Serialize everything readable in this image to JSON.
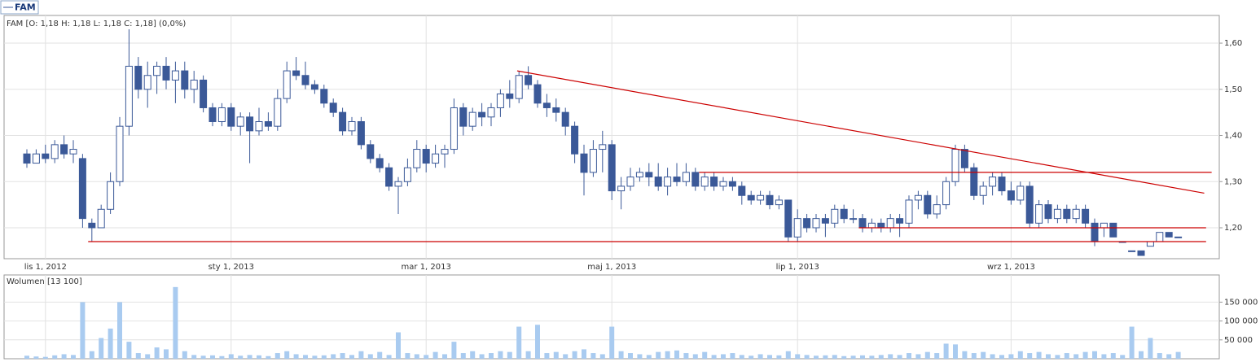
{
  "header": {
    "legend": "FAM",
    "info": "FAM [O: 1,18  H: 1,18  L: 1,18  C: 1,18] (0,0%)"
  },
  "chart_data": [
    {
      "type": "candlestick",
      "up_color": "#ffffff",
      "down_color": "#3b5998",
      "edge_color": "#3b5998",
      "grid": true,
      "categories": [
        null,
        null,
        "lis 1, 2012",
        null,
        null,
        null,
        null,
        null,
        null,
        null,
        null,
        null,
        null,
        null,
        null,
        null,
        null,
        null,
        null,
        null,
        null,
        null,
        "sty 1, 2013",
        null,
        null,
        null,
        null,
        null,
        null,
        null,
        null,
        null,
        null,
        null,
        null,
        null,
        null,
        null,
        null,
        null,
        null,
        null,
        null,
        "mar 1, 2013",
        null,
        null,
        null,
        null,
        null,
        null,
        null,
        null,
        null,
        null,
        null,
        null,
        null,
        null,
        null,
        null,
        null,
        null,
        null,
        "maj 1, 2013",
        null,
        null,
        null,
        null,
        null,
        null,
        null,
        null,
        null,
        null,
        null,
        null,
        null,
        null,
        null,
        null,
        null,
        null,
        null,
        "lip 1, 2013",
        null,
        null,
        null,
        null,
        null,
        null,
        null,
        null,
        null,
        null,
        null,
        null,
        null,
        null,
        null,
        null,
        null,
        null,
        null,
        null,
        null,
        null,
        "wrz 1, 2013",
        null,
        null,
        null,
        null,
        null,
        null,
        null,
        null,
        null,
        null,
        null,
        null,
        null,
        null,
        null,
        null,
        null,
        null
      ],
      "open": [
        1.36,
        1.34,
        1.36,
        1.35,
        1.38,
        1.36,
        1.35,
        1.21,
        1.2,
        1.24,
        1.3,
        1.42,
        1.55,
        1.5,
        1.53,
        1.55,
        1.52,
        1.54,
        1.5,
        1.52,
        1.46,
        1.43,
        1.46,
        1.42,
        1.44,
        1.41,
        1.43,
        1.42,
        1.48,
        1.54,
        1.53,
        1.51,
        1.5,
        1.47,
        1.45,
        1.41,
        1.43,
        1.38,
        1.35,
        1.33,
        1.29,
        1.3,
        1.33,
        1.37,
        1.34,
        1.36,
        1.37,
        1.46,
        1.42,
        1.45,
        1.44,
        1.46,
        1.49,
        1.48,
        1.53,
        1.51,
        1.47,
        1.46,
        1.45,
        1.42,
        1.36,
        1.32,
        1.37,
        1.38,
        1.28,
        1.29,
        1.31,
        1.32,
        1.31,
        1.29,
        1.31,
        1.3,
        1.32,
        1.29,
        1.31,
        1.29,
        1.3,
        1.29,
        1.27,
        1.26,
        1.27,
        1.25,
        1.26,
        1.18,
        1.22,
        1.2,
        1.22,
        1.21,
        1.24,
        1.22,
        1.22,
        1.2,
        1.21,
        1.2,
        1.22,
        1.21,
        1.26,
        1.27,
        1.23,
        1.25,
        1.3,
        1.37,
        1.33,
        1.27,
        1.29,
        1.31,
        1.28,
        1.26,
        1.29,
        1.21,
        1.25,
        1.22,
        1.24,
        1.22,
        1.24,
        1.21,
        1.2,
        1.21,
        1.17,
        1.15,
        1.15,
        1.16,
        1.17,
        1.19,
        1.18
      ],
      "high": [
        1.37,
        1.37,
        1.38,
        1.39,
        1.4,
        1.39,
        1.36,
        1.22,
        1.25,
        1.32,
        1.44,
        1.63,
        1.57,
        1.56,
        1.56,
        1.57,
        1.56,
        1.56,
        1.54,
        1.53,
        1.47,
        1.47,
        1.47,
        1.45,
        1.45,
        1.46,
        1.45,
        1.5,
        1.56,
        1.57,
        1.56,
        1.52,
        1.51,
        1.48,
        1.46,
        1.44,
        1.44,
        1.39,
        1.36,
        1.34,
        1.31,
        1.35,
        1.39,
        1.38,
        1.38,
        1.38,
        1.48,
        1.47,
        1.46,
        1.47,
        1.47,
        1.5,
        1.52,
        1.54,
        1.55,
        1.52,
        1.49,
        1.48,
        1.46,
        1.43,
        1.38,
        1.39,
        1.41,
        1.39,
        1.31,
        1.33,
        1.33,
        1.34,
        1.34,
        1.33,
        1.34,
        1.34,
        1.33,
        1.32,
        1.32,
        1.31,
        1.31,
        1.3,
        1.28,
        1.28,
        1.28,
        1.27,
        1.26,
        1.24,
        1.23,
        1.23,
        1.23,
        1.25,
        1.25,
        1.24,
        1.23,
        1.22,
        1.22,
        1.23,
        1.23,
        1.27,
        1.28,
        1.28,
        1.27,
        1.31,
        1.38,
        1.38,
        1.34,
        1.3,
        1.32,
        1.32,
        1.3,
        1.3,
        1.3,
        1.26,
        1.26,
        1.25,
        1.25,
        1.25,
        1.25,
        1.22,
        1.21,
        1.21,
        1.17,
        1.15,
        1.15,
        1.17,
        1.19,
        1.19,
        1.18
      ],
      "low": [
        1.33,
        1.34,
        1.34,
        1.34,
        1.35,
        1.34,
        1.2,
        1.17,
        1.2,
        1.23,
        1.29,
        1.4,
        1.48,
        1.46,
        1.49,
        1.5,
        1.47,
        1.48,
        1.47,
        1.45,
        1.42,
        1.42,
        1.41,
        1.4,
        1.34,
        1.4,
        1.41,
        1.41,
        1.47,
        1.52,
        1.5,
        1.49,
        1.46,
        1.44,
        1.4,
        1.4,
        1.37,
        1.34,
        1.32,
        1.28,
        1.23,
        1.29,
        1.32,
        1.32,
        1.33,
        1.33,
        1.36,
        1.4,
        1.41,
        1.42,
        1.42,
        1.44,
        1.46,
        1.47,
        1.5,
        1.46,
        1.44,
        1.43,
        1.4,
        1.34,
        1.27,
        1.31,
        1.32,
        1.26,
        1.24,
        1.28,
        1.3,
        1.29,
        1.28,
        1.27,
        1.29,
        1.29,
        1.28,
        1.28,
        1.28,
        1.28,
        1.28,
        1.25,
        1.25,
        1.25,
        1.24,
        1.24,
        1.17,
        1.17,
        1.19,
        1.19,
        1.18,
        1.2,
        1.21,
        1.21,
        1.19,
        1.19,
        1.19,
        1.19,
        1.18,
        1.2,
        1.24,
        1.22,
        1.22,
        1.24,
        1.29,
        1.32,
        1.26,
        1.25,
        1.27,
        1.27,
        1.25,
        1.25,
        1.2,
        1.2,
        1.21,
        1.21,
        1.21,
        1.21,
        1.2,
        1.16,
        1.18,
        1.18,
        1.17,
        1.15,
        1.14,
        1.16,
        1.17,
        1.18,
        1.18
      ],
      "close": [
        1.34,
        1.36,
        1.35,
        1.38,
        1.36,
        1.37,
        1.22,
        1.2,
        1.24,
        1.3,
        1.42,
        1.55,
        1.5,
        1.53,
        1.55,
        1.52,
        1.54,
        1.5,
        1.52,
        1.46,
        1.43,
        1.46,
        1.42,
        1.44,
        1.41,
        1.43,
        1.42,
        1.48,
        1.54,
        1.53,
        1.51,
        1.5,
        1.47,
        1.45,
        1.41,
        1.43,
        1.38,
        1.35,
        1.33,
        1.29,
        1.3,
        1.33,
        1.37,
        1.34,
        1.36,
        1.37,
        1.46,
        1.42,
        1.45,
        1.44,
        1.46,
        1.49,
        1.48,
        1.53,
        1.51,
        1.47,
        1.46,
        1.45,
        1.42,
        1.36,
        1.32,
        1.37,
        1.38,
        1.28,
        1.29,
        1.31,
        1.32,
        1.31,
        1.29,
        1.31,
        1.3,
        1.32,
        1.29,
        1.31,
        1.29,
        1.3,
        1.29,
        1.27,
        1.26,
        1.27,
        1.25,
        1.26,
        1.18,
        1.22,
        1.2,
        1.22,
        1.21,
        1.24,
        1.22,
        1.22,
        1.2,
        1.21,
        1.2,
        1.22,
        1.21,
        1.26,
        1.27,
        1.23,
        1.25,
        1.3,
        1.37,
        1.33,
        1.27,
        1.29,
        1.31,
        1.28,
        1.26,
        1.29,
        1.21,
        1.25,
        1.22,
        1.24,
        1.22,
        1.24,
        1.21,
        1.17,
        1.21,
        1.18,
        1.17,
        1.15,
        1.14,
        1.17,
        1.19,
        1.18,
        1.18
      ],
      "ylim": [
        1.133,
        1.66
      ],
      "yticks": [
        {
          "value": 1.2,
          "label": "1,20"
        },
        {
          "value": 1.3,
          "label": "1,30"
        },
        {
          "value": 1.4,
          "label": "1,40"
        },
        {
          "value": 1.5,
          "label": "1,50"
        },
        {
          "value": 1.6,
          "label": "1,60"
        }
      ],
      "trendlines": {
        "color": "#cc0000",
        "lines": [
          {
            "x": [
              6.6,
              127
            ],
            "y": [
              1.17,
              1.17
            ]
          },
          {
            "x": [
              89.6,
              127
            ],
            "y": [
              1.2,
              1.2
            ]
          },
          {
            "x": [
              72.4,
              127.6
            ],
            "y": [
              1.32,
              1.32
            ]
          },
          {
            "x": [
              52.8,
              126.8
            ],
            "y": [
              1.54,
              1.275
            ]
          }
        ]
      }
    },
    {
      "type": "bar",
      "title": "Wolumen [13 100]",
      "color": "#a9cbf0",
      "grid": true,
      "values": [
        8000,
        6000,
        5000,
        9000,
        12000,
        10000,
        150000,
        20000,
        55000,
        80000,
        150000,
        45000,
        15000,
        12000,
        30000,
        25000,
        190000,
        20000,
        10000,
        8000,
        9000,
        7000,
        12000,
        8000,
        10000,
        9000,
        7000,
        15000,
        20000,
        12000,
        10000,
        8000,
        9000,
        12000,
        15000,
        10000,
        20000,
        12000,
        18000,
        10000,
        70000,
        15000,
        12000,
        10000,
        18000,
        12000,
        45000,
        15000,
        20000,
        12000,
        15000,
        20000,
        18000,
        85000,
        20000,
        90000,
        15000,
        18000,
        12000,
        20000,
        25000,
        15000,
        12000,
        85000,
        20000,
        15000,
        12000,
        10000,
        18000,
        20000,
        22000,
        15000,
        12000,
        18000,
        10000,
        12000,
        15000,
        10000,
        8000,
        12000,
        10000,
        9000,
        20000,
        12000,
        10000,
        8000,
        9000,
        10000,
        7000,
        8000,
        9000,
        8000,
        10000,
        12000,
        10000,
        15000,
        12000,
        18000,
        15000,
        40000,
        38000,
        20000,
        15000,
        18000,
        12000,
        10000,
        12000,
        20000,
        15000,
        18000,
        12000,
        10000,
        15000,
        12000,
        18000,
        20000,
        12000,
        15000,
        10000,
        85000,
        20000,
        55000,
        15000,
        12000,
        18000
      ],
      "ylim": [
        0,
        222000
      ],
      "yticks": [
        {
          "value": 50000,
          "label": "50 000"
        },
        {
          "value": 100000,
          "label": "100 000"
        },
        {
          "value": 150000,
          "label": "150 000"
        }
      ]
    }
  ]
}
